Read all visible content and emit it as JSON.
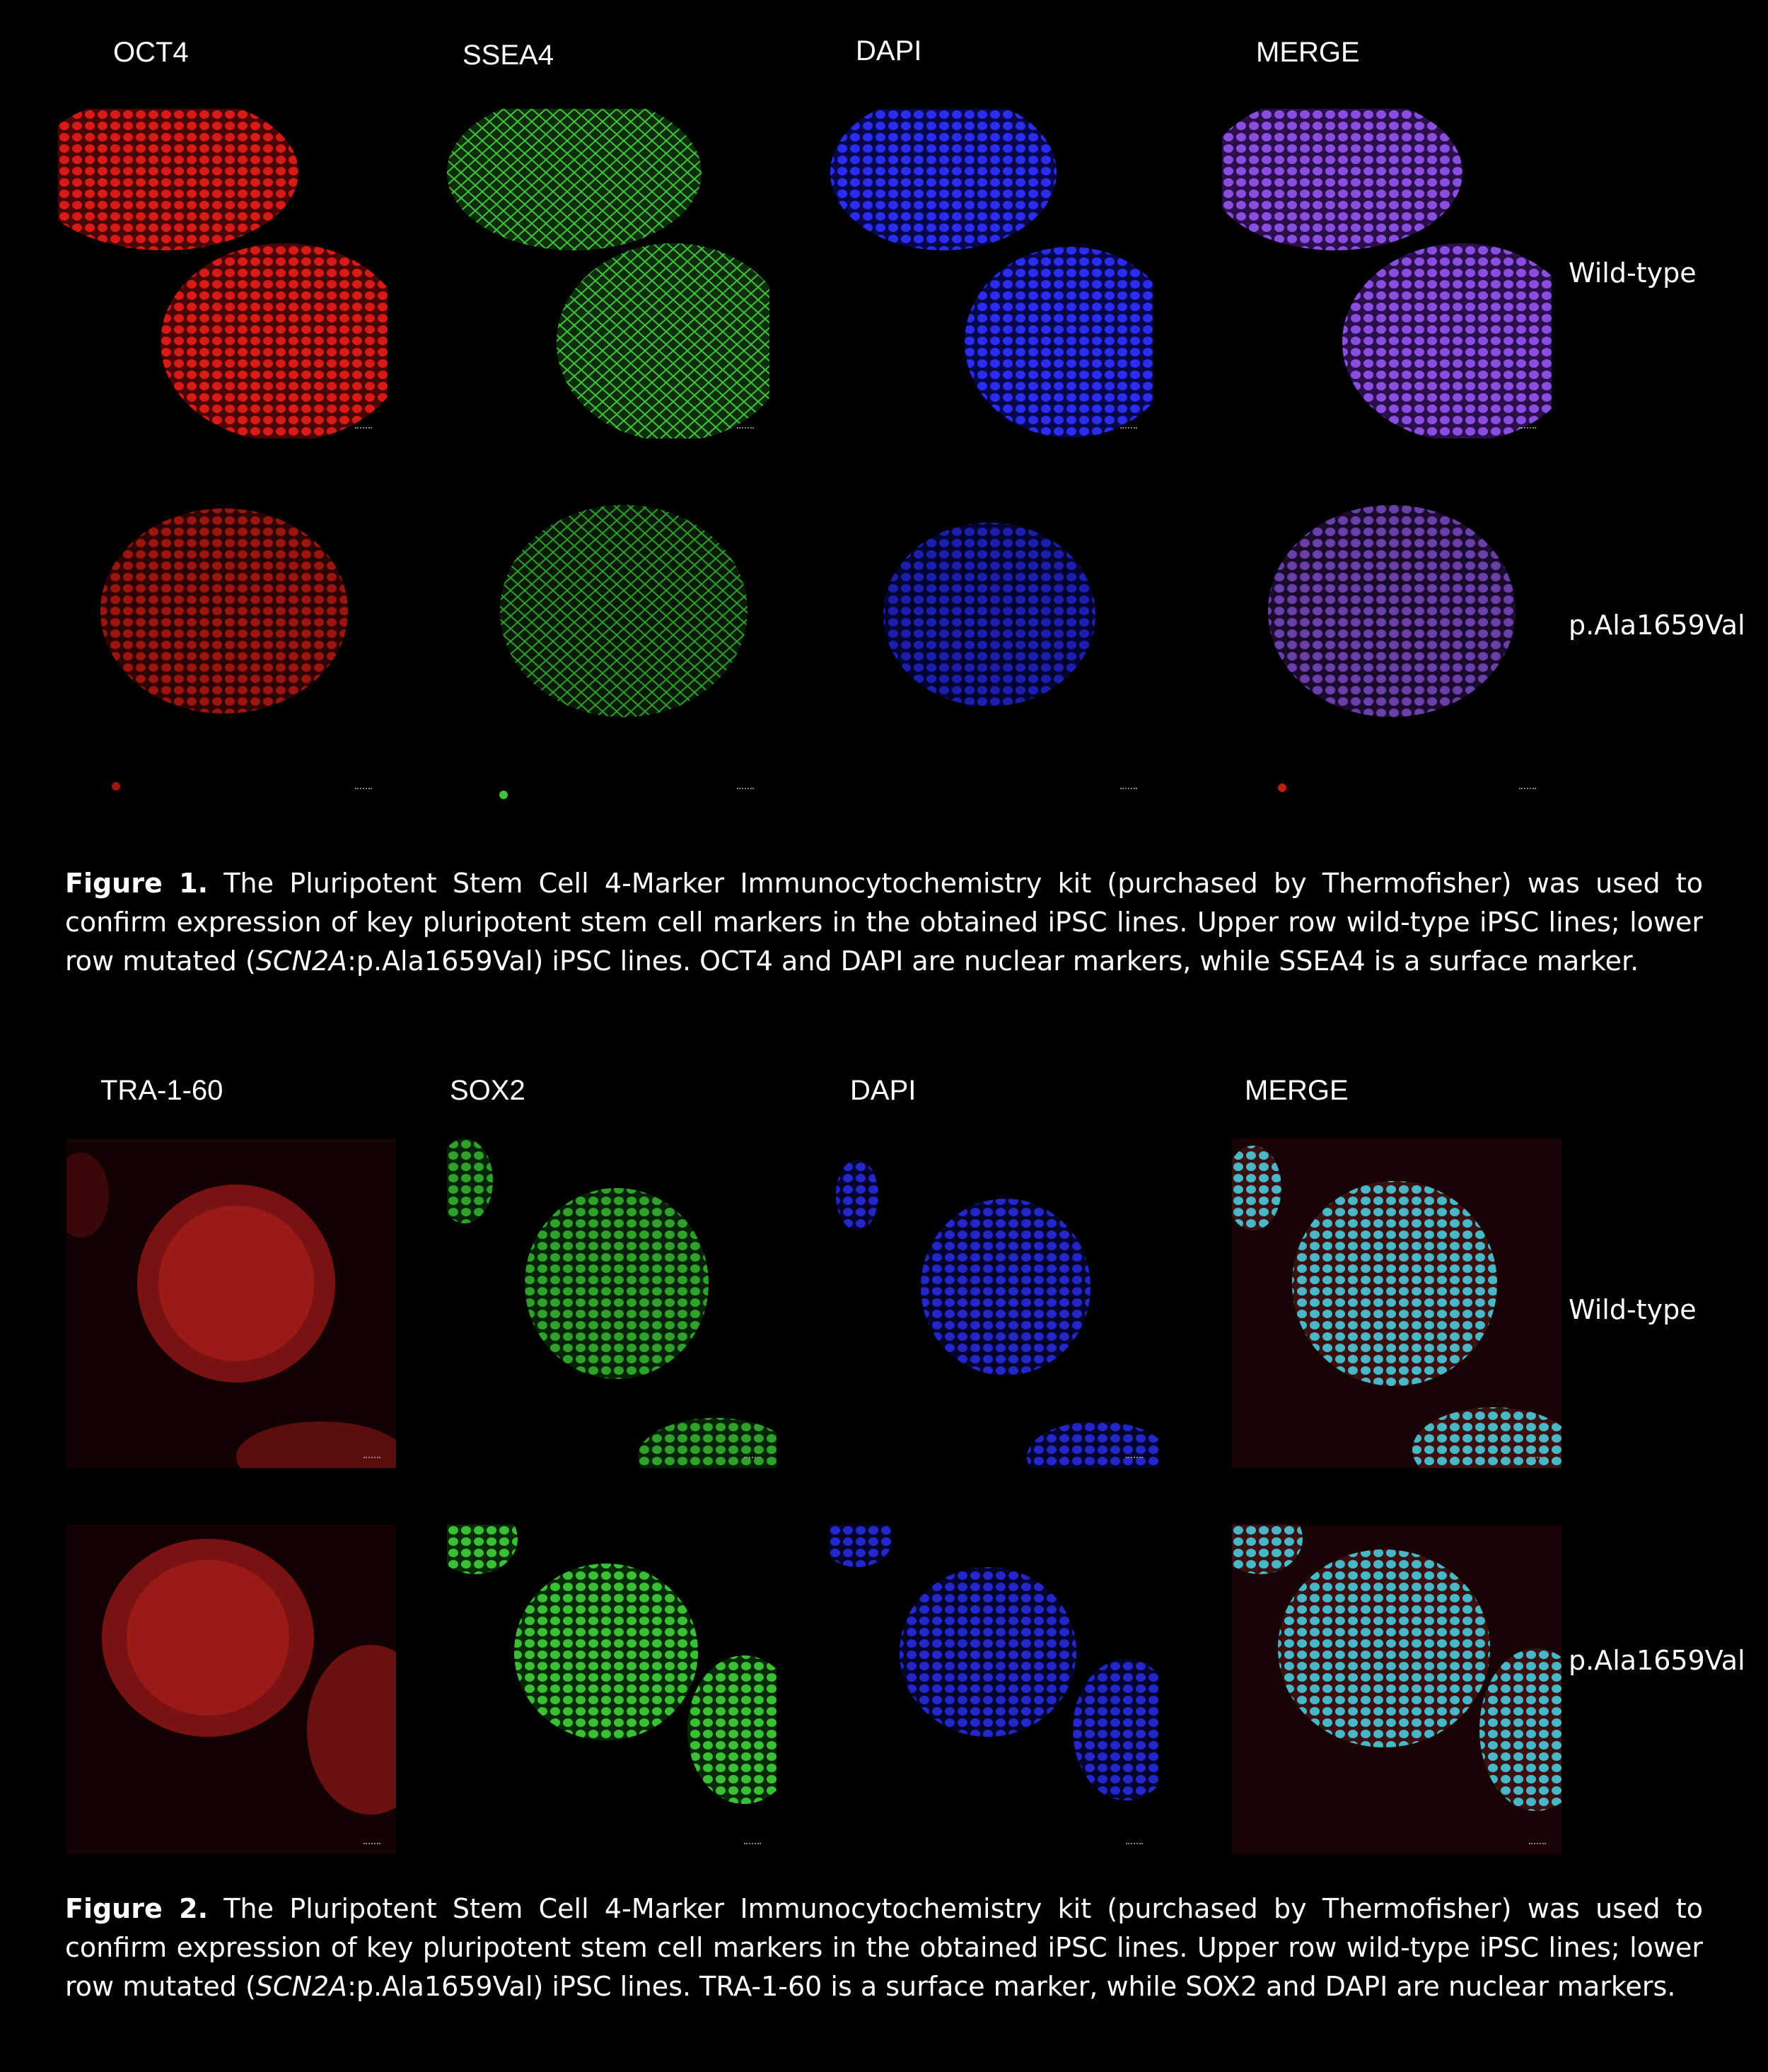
{
  "figure1": {
    "column_labels": [
      "OCT4",
      "SSEA4",
      "DAPI",
      "MERGE"
    ],
    "row_labels": [
      "Wild-type",
      "p.Ala1659Val"
    ],
    "caption": {
      "label": "Figure 1.",
      "part1": " The Pluripotent Stem Cell 4-Marker Immunocytochemistry kit (purchased by Thermofisher) was used to confirm expression of key pluripotent stem cell markers in the obtained iPSC lines. Upper row wild-type iPSC lines; lower row mutated (",
      "gene": "SCN2A",
      "part2": ":p.Ala1659Val) iPSC lines. OCT4 and DAPI are nuclear markers, while SSEA4 is a surface marker."
    }
  },
  "figure2": {
    "column_labels": [
      "TRA-1-60",
      "SOX2",
      "DAPI",
      "MERGE"
    ],
    "row_labels": [
      "Wild-type",
      "p.Ala1659Val"
    ],
    "caption": {
      "label": "Figure 2.",
      "part1": " The Pluripotent Stem Cell 4-Marker Immunocytochemistry kit (purchased by Thermofisher) was used to confirm expression of key pluripotent stem cell markers in the obtained iPSC lines. Upper row wild-type iPSC lines; lower row mutated (",
      "gene": "SCN2A",
      "part2": ":p.Ala1659Val) iPSC lines. TRA-1-60 is a surface marker, while SOX2 and DAPI are nuclear markers."
    }
  },
  "colors": {
    "red_channel": "#e0201c",
    "green_channel": "#3fbf3a",
    "blue_channel": "#2a2cf0",
    "merge_purple": "#8a4fe0",
    "merge_cyan": "#48b8c8"
  }
}
